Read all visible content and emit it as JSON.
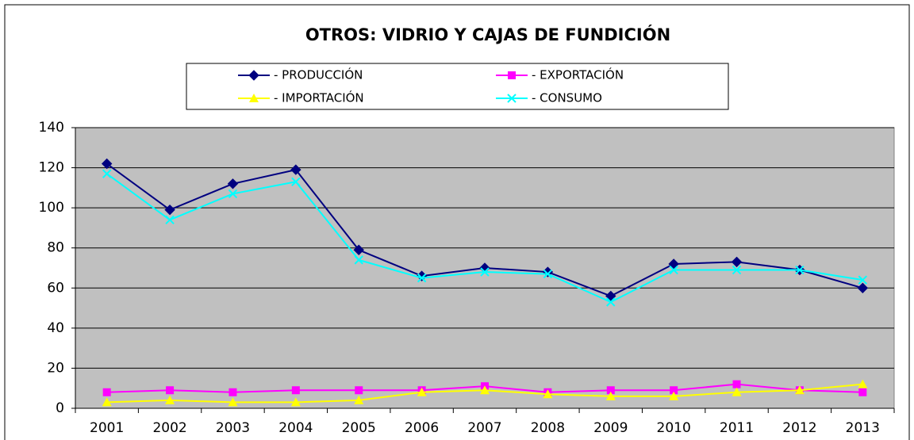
{
  "chart_data": {
    "type": "line",
    "title": "OTROS: VIDRIO Y CAJAS DE FUNDICIÓN",
    "categories": [
      "2001",
      "2002",
      "2003",
      "2004",
      "2005",
      "2006",
      "2007",
      "2008",
      "2009",
      "2010",
      "2011",
      "2012",
      "2013"
    ],
    "series": [
      {
        "name": "- PRODUCCIÓN",
        "color": "#000080",
        "marker": "diamond",
        "values": [
          122,
          99,
          112,
          119,
          79,
          66,
          70,
          68,
          56,
          72,
          73,
          69,
          60
        ]
      },
      {
        "name": "- EXPORTACIÓN",
        "color": "#ff00ff",
        "marker": "square",
        "values": [
          8,
          9,
          8,
          9,
          9,
          9,
          11,
          8,
          9,
          9,
          12,
          9,
          8
        ]
      },
      {
        "name": "- IMPORTACIÓN",
        "color": "#ffff00",
        "marker": "triangle",
        "values": [
          3,
          4,
          3,
          3,
          4,
          8,
          9,
          7,
          6,
          6,
          8,
          9,
          12
        ]
      },
      {
        "name": "- CONSUMO",
        "color": "#00ffff",
        "marker": "x",
        "values": [
          117,
          94,
          107,
          113,
          74,
          65,
          68,
          67,
          53,
          69,
          69,
          69,
          64
        ]
      }
    ],
    "ylim": [
      0,
      140
    ],
    "yticks": [
      0,
      20,
      40,
      60,
      80,
      100,
      120,
      140
    ],
    "grid": true
  }
}
